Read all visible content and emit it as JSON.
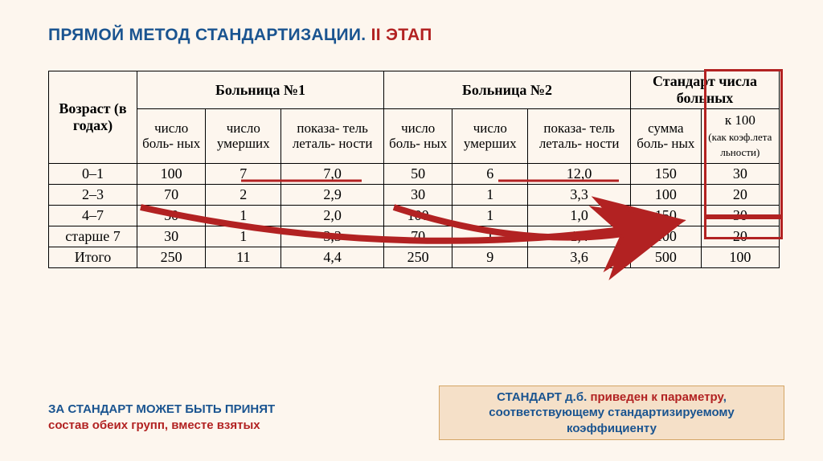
{
  "title": {
    "main": "ПРЯМОЙ МЕТОД СТАНДАРТИЗАЦИИ.",
    "stage": "II ЭТАП"
  },
  "headers": {
    "age": "Возраст (в годах)",
    "hosp1": "Больница №1",
    "hosp2": "Больница №2",
    "standard": "Стандарт числа больных",
    "sub": {
      "patients": "число боль-\nных",
      "deaths": "число умерших",
      "lethality": "показа-\nтель леталь-\nности",
      "sum": "сумма боль-\nных",
      "per100": "к 100",
      "per100_note": "(как коэф.лета льности)"
    }
  },
  "rows": [
    {
      "age": "0–1",
      "h1_p": "100",
      "h1_d": "7",
      "h1_l": "7,0",
      "h2_p": "50",
      "h2_d": "6",
      "h2_l": "12,0",
      "sum": "150",
      "k100": "30"
    },
    {
      "age": "2–3",
      "h1_p": "70",
      "h1_d": "2",
      "h1_l": "2,9",
      "h2_p": "30",
      "h2_d": "1",
      "h2_l": "3,3",
      "sum": "100",
      "k100": "20"
    },
    {
      "age": "4–7",
      "h1_p": "50",
      "h1_d": "1",
      "h1_l": "2,0",
      "h2_p": "100",
      "h2_d": "1",
      "h2_l": "1,0",
      "sum": "150",
      "k100": "30"
    },
    {
      "age": "старше 7",
      "h1_p": "30",
      "h1_d": "1",
      "h1_l": "3,3",
      "h2_p": "70",
      "h2_d": "1",
      "h2_l": "1,4",
      "sum": "100",
      "k100": "20"
    },
    {
      "age": "Итого",
      "h1_p": "250",
      "h1_d": "11",
      "h1_l": "4,4",
      "h2_p": "250",
      "h2_d": "9",
      "h2_l": "3,6",
      "sum": "500",
      "k100": "100"
    }
  ],
  "footer_left": {
    "line1": "ЗА СТАНДАРТ МОЖЕТ БЫТЬ ПРИНЯТ",
    "line2": "состав обеих групп, вместе взятых"
  },
  "footer_right": {
    "part1": "СТАНДАРТ д.б.",
    "accent": "приведен к параметру",
    "part2": ", соответствующему стандартизируемому коэффициенту"
  },
  "style": {
    "bg": "#fdf6ee",
    "title_color": "#1a5490",
    "accent_color": "#b22222",
    "arrow_color": "#b22222",
    "border_color": "#000000",
    "footer_box_bg": "#f5e0c8",
    "footer_box_border": "#d4a565",
    "font_title_size": 21,
    "font_table_size": 18,
    "font_footer_size": 15
  }
}
